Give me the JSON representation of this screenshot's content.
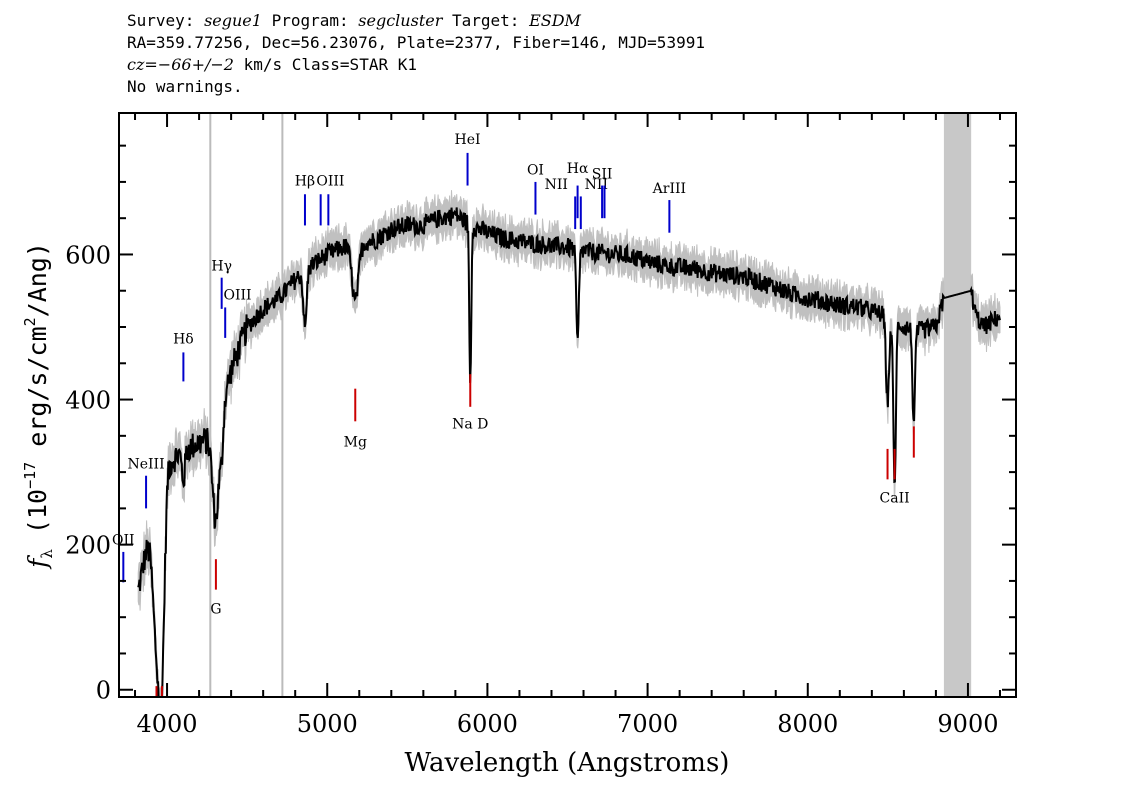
{
  "header": {
    "line1": {
      "survey_label": "Survey:",
      "survey": "segue1",
      "program_label": "Program:",
      "program": "segcluster",
      "target_label": "Target:",
      "target": "ESDM"
    },
    "line2": "RA=359.77256, Dec=56.23076, Plate=2377, Fiber=146, MJD=53991",
    "line3": {
      "cz_label": "cz",
      "cz_value": "=−66+/−2",
      "cz_units": "km/s Class=STAR K1"
    },
    "line4": "No warnings."
  },
  "chart_data": {
    "type": "line",
    "title": "",
    "xlabel": "Wavelength (Angstroms)",
    "ylabel": "f_λ (10^-17 erg/s/cm^2/Ang)",
    "ylabel_parts": {
      "f": "f",
      "sub": "λ",
      "a": "(10",
      "exp1": "−17",
      "b": " erg/s/cm",
      "exp2": "2",
      "c": "/Ang)"
    },
    "xlim": [
      3700,
      9300
    ],
    "ylim": [
      -10,
      795
    ],
    "x_ticks": [
      4000,
      5000,
      6000,
      7000,
      8000,
      9000
    ],
    "x_tick_labels": [
      "4000",
      "5000",
      "6000",
      "7000",
      "8000",
      "9000"
    ],
    "y_ticks": [
      0,
      200,
      400,
      600
    ],
    "y_tick_labels": [
      "0",
      "200",
      "400",
      "600"
    ],
    "colors": {
      "flux": "#000000",
      "error": "#c0c0c0",
      "emission": "#0000cc",
      "absorption": "#cc0000",
      "band": "#c8c8c8",
      "ref": "#bbbbbb"
    },
    "masked_band": [
      8850,
      9020
    ],
    "reference_lines": [
      4270,
      4720
    ],
    "continuum": [
      [
        3820,
        135
      ],
      [
        3900,
        230
      ],
      [
        3960,
        210
      ],
      [
        4000,
        310
      ],
      [
        4100,
        330
      ],
      [
        4200,
        340
      ],
      [
        4300,
        350
      ],
      [
        4400,
        440
      ],
      [
        4500,
        500
      ],
      [
        4600,
        525
      ],
      [
        4700,
        540
      ],
      [
        4800,
        565
      ],
      [
        4900,
        585
      ],
      [
        5000,
        600
      ],
      [
        5100,
        610
      ],
      [
        5200,
        615
      ],
      [
        5300,
        620
      ],
      [
        5400,
        635
      ],
      [
        5500,
        640
      ],
      [
        5600,
        640
      ],
      [
        5700,
        650
      ],
      [
        5800,
        655
      ],
      [
        5900,
        640
      ],
      [
        6000,
        630
      ],
      [
        6100,
        622
      ],
      [
        6200,
        618
      ],
      [
        6300,
        615
      ],
      [
        6400,
        612
      ],
      [
        6500,
        610
      ],
      [
        6600,
        605
      ],
      [
        6700,
        602
      ],
      [
        6800,
        600
      ],
      [
        6900,
        598
      ],
      [
        7000,
        590
      ],
      [
        7100,
        585
      ],
      [
        7200,
        582
      ],
      [
        7300,
        580
      ],
      [
        7400,
        575
      ],
      [
        7500,
        572
      ],
      [
        7600,
        570
      ],
      [
        7700,
        562
      ],
      [
        7800,
        555
      ],
      [
        7900,
        545
      ],
      [
        8000,
        540
      ],
      [
        8100,
        535
      ],
      [
        8200,
        530
      ],
      [
        8300,
        528
      ],
      [
        8400,
        522
      ],
      [
        8500,
        515
      ],
      [
        8600,
        500
      ],
      [
        8700,
        495
      ],
      [
        8800,
        500
      ],
      [
        8850,
        540
      ],
      [
        9020,
        550
      ],
      [
        9050,
        515
      ],
      [
        9100,
        500
      ],
      [
        9200,
        515
      ]
    ],
    "absorption_features": [
      [
        3934,
        25,
        -150
      ],
      [
        3968,
        18,
        -175
      ],
      [
        4102,
        10,
        -40
      ],
      [
        4305,
        20,
        -120
      ],
      [
        4341,
        10,
        -50
      ],
      [
        4861,
        10,
        -80
      ],
      [
        5175,
        20,
        -80
      ],
      [
        5893,
        6,
        -220
      ],
      [
        6563,
        8,
        -130
      ],
      [
        8498,
        10,
        -115
      ],
      [
        8542,
        8,
        -230
      ],
      [
        8662,
        8,
        -130
      ]
    ],
    "emission_lines": [
      {
        "label": "OII",
        "x": 3727,
        "y1": 148,
        "y2": 190,
        "lx": 3727,
        "ly": 200
      },
      {
        "label": "NeIII",
        "x": 3869,
        "y1": 250,
        "y2": 295,
        "lx": 3869,
        "ly": 305
      },
      {
        "label": "Hδ",
        "x": 4102,
        "y1": 425,
        "y2": 465,
        "lx": 4102,
        "ly": 477
      },
      {
        "label": "Hγ",
        "x": 4341,
        "y1": 525,
        "y2": 568,
        "lx": 4341,
        "ly": 578
      },
      {
        "label": "OIII",
        "x": 4363,
        "y1": 485,
        "y2": 527,
        "lx": 4440,
        "ly": 538
      },
      {
        "label": "Hβ",
        "x": 4861,
        "y1": 640,
        "y2": 683,
        "lx": 4861,
        "ly": 695
      },
      {
        "label": "OIII",
        "x": 4959,
        "y1": 640,
        "y2": 683,
        "lx": 5020,
        "ly": 695
      },
      {
        "label": "OIII",
        "x": 5007,
        "y1": 640,
        "y2": 683,
        "lx": 5020,
        "ly": 695
      },
      {
        "label": "HeI",
        "x": 5876,
        "y1": 695,
        "y2": 740,
        "lx": 5876,
        "ly": 752
      },
      {
        "label": "OI",
        "x": 6300,
        "y1": 655,
        "y2": 700,
        "lx": 6300,
        "ly": 710
      },
      {
        "label": "NII",
        "x": 6548,
        "y1": 635,
        "y2": 680,
        "lx": 6430,
        "ly": 690
      },
      {
        "label": "Hα",
        "x": 6563,
        "y1": 650,
        "y2": 695,
        "lx": 6563,
        "ly": 712
      },
      {
        "label": "NII",
        "x": 6583,
        "y1": 635,
        "y2": 680,
        "lx": 6680,
        "ly": 690
      },
      {
        "label": "SII",
        "x": 6716,
        "y1": 650,
        "y2": 695,
        "lx": 6716,
        "ly": 705
      },
      {
        "label": "SII",
        "x": 6731,
        "y1": 650,
        "y2": 695,
        "lx": 6716,
        "ly": 705
      },
      {
        "label": "ArIII",
        "x": 7136,
        "y1": 630,
        "y2": 675,
        "lx": 7136,
        "ly": 685
      }
    ],
    "absorption_lines": [
      {
        "label": "",
        "x": 3934,
        "y1": -10,
        "y2": 5
      },
      {
        "label": "",
        "x": 3968,
        "y1": -10,
        "y2": 5
      },
      {
        "label": "G",
        "x": 4305,
        "y1": 138,
        "y2": 180,
        "lx": 4305,
        "ly": 105
      },
      {
        "label": "Mg",
        "x": 5175,
        "y1": 370,
        "y2": 415,
        "lx": 5175,
        "ly": 335
      },
      {
        "label": "Na D",
        "x": 5893,
        "y1": 390,
        "y2": 435,
        "lx": 5893,
        "ly": 360
      },
      {
        "label": "",
        "x": 8498,
        "y1": 290,
        "y2": 332
      },
      {
        "label": "CaII",
        "x": 8542,
        "y1": 290,
        "y2": 332,
        "lx": 8542,
        "ly": 258
      },
      {
        "label": "",
        "x": 8662,
        "y1": 320,
        "y2": 363
      }
    ]
  }
}
